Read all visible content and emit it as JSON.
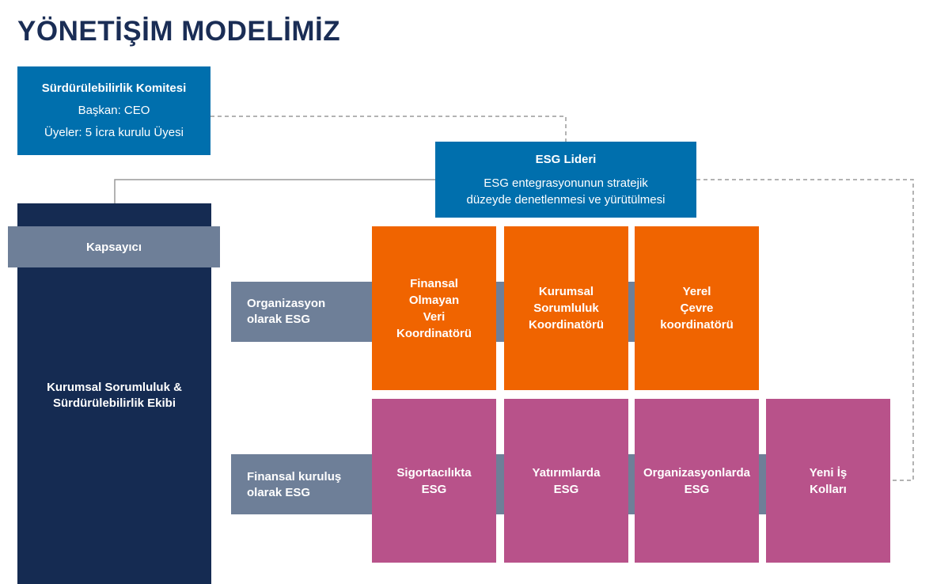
{
  "title": "YÖNETİŞİM MODELİMİZ",
  "colors": {
    "navy": "#152b52",
    "blue": "#006fad",
    "slate": "#6e7f98",
    "orange": "#f06400",
    "pink": "#b8528a"
  },
  "committee": {
    "name": "Sürdürülebilirlik Komitesi",
    "chair": "Başkan: CEO",
    "members": "Üyeler: 5 İcra kurulu Üyesi"
  },
  "esg_lead": {
    "name": "ESG Lideri",
    "desc_line1": "ESG entegrasyonunun stratejik",
    "desc_line2": "düzeyde denetlenmesi ve yürütülmesi"
  },
  "team": {
    "umbrella": "Kapsayıcı",
    "line1": "Kurumsal Sorumluluk &",
    "line2": "Sürdürülebilirlik Ekibi"
  },
  "rows": [
    {
      "label_line1": "Organizasyon",
      "label_line2": "olarak ESG",
      "cells": [
        {
          "lines": [
            "Finansal",
            "Olmayan",
            "Veri",
            "Koordinatörü"
          ]
        },
        {
          "lines": [
            "Kurumsal",
            "Sorumluluk",
            "Koordinatörü"
          ]
        },
        {
          "lines": [
            "Yerel",
            "Çevre",
            "koordinatörü"
          ]
        }
      ]
    },
    {
      "label_line1": "Finansal kuruluş",
      "label_line2": "olarak ESG",
      "cells": [
        {
          "lines": [
            "Sigortacılıkta",
            "ESG"
          ]
        },
        {
          "lines": [
            "Yatırımlarda",
            "ESG"
          ]
        },
        {
          "lines": [
            "Organizasyonlarda",
            "ESG"
          ]
        },
        {
          "lines": [
            "Yeni İş",
            "Kolları"
          ]
        }
      ]
    }
  ]
}
